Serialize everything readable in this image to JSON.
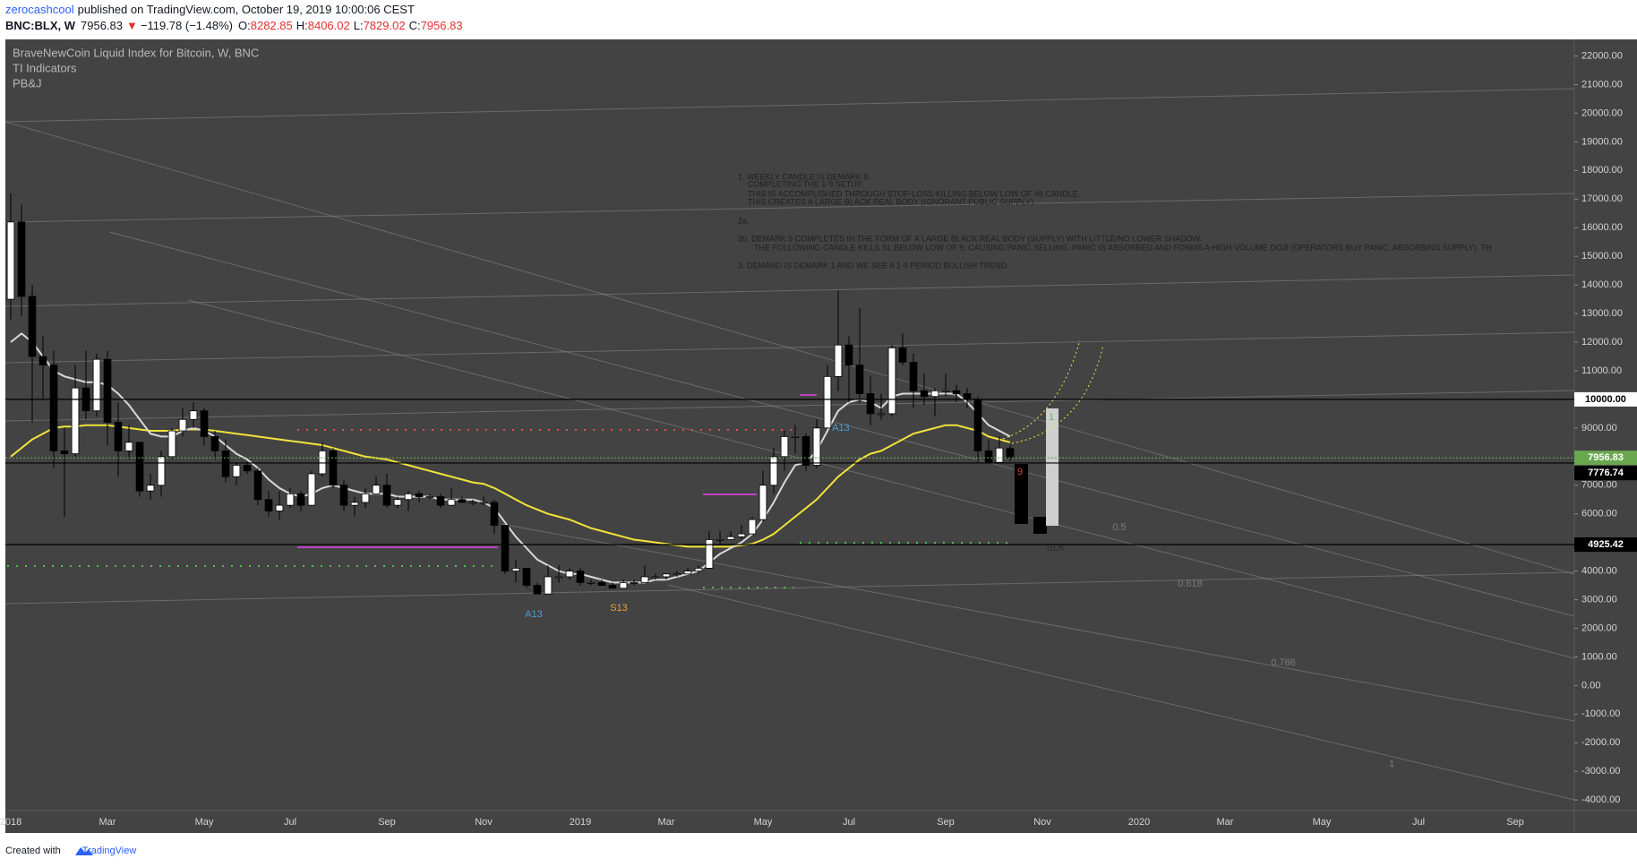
{
  "header": {
    "author": "zerocashcool",
    "published": "published on TradingView.com, October 19, 2019 10:00:06 CEST",
    "symbol": "BNC:BLX, W",
    "last": "7956.83",
    "arrow": "▼",
    "change": "−119.78 (−1.48%)",
    "ohlc": [
      {
        "label": "O:",
        "value": "8282.85"
      },
      {
        "label": "H:",
        "value": "8406.02"
      },
      {
        "label": "L:",
        "value": "7829.02"
      },
      {
        "label": "C:",
        "value": "7956.83"
      }
    ]
  },
  "footer": {
    "text": "Created with",
    "brand": "TradingView"
  },
  "chart_data": {
    "type": "candlestick",
    "title": "BraveNewCoin Liquid Index for Bitcoin, W, BNC",
    "indicators": [
      "TI Indicators",
      "PB&J"
    ],
    "up_color": "#ffffff",
    "down_color": "#000000",
    "categories": [
      "2018",
      null,
      null,
      null,
      null,
      null,
      null,
      null,
      null,
      "Mar",
      null,
      null,
      null,
      null,
      null,
      null,
      null,
      null,
      "May",
      null,
      null,
      null,
      null,
      null,
      null,
      null,
      "Jul",
      null,
      null,
      null,
      null,
      null,
      null,
      null,
      null,
      "Sep",
      null,
      null,
      null,
      null,
      null,
      null,
      null,
      null,
      "Nov",
      null,
      null,
      null,
      null,
      null,
      null,
      null,
      null,
      "2019",
      null,
      null,
      null,
      null,
      null,
      null,
      null,
      "Mar",
      null,
      null,
      null,
      null,
      null,
      null,
      null,
      null,
      "May",
      null,
      null,
      null,
      null,
      null,
      null,
      null,
      "Jul",
      null,
      null,
      null,
      null,
      null,
      null,
      null,
      null,
      "Sep",
      null,
      null,
      null,
      null,
      null,
      null,
      null,
      null,
      "Nov",
      null,
      null,
      null,
      null,
      null,
      null,
      null,
      null,
      "2020",
      null,
      null,
      null,
      null,
      null,
      null,
      null,
      "Mar",
      null,
      null,
      null,
      null,
      null,
      null,
      null,
      null,
      "May",
      null,
      null,
      null,
      null,
      null,
      null,
      null,
      null,
      "Jul",
      null,
      null,
      null,
      null,
      null,
      null,
      null,
      null,
      "Sep",
      null,
      null,
      null,
      null,
      null
    ],
    "open": [
      13500,
      16200,
      13600,
      11500,
      11200,
      8200,
      8100,
      10400,
      9600,
      11400,
      9200,
      8200,
      8500,
      6800,
      7000,
      8000,
      8900,
      9300,
      9600,
      8700,
      8200,
      7300,
      7700,
      7500,
      6500,
      6100,
      6300,
      6700,
      6300,
      7400,
      8200,
      7000,
      6300,
      6400,
      6700,
      7000,
      6300,
      6500,
      6700,
      6600,
      6600,
      6300,
      6500,
      6400,
      6400,
      6400,
      5600,
      4000,
      4100,
      3500,
      3200,
      3800,
      3800,
      4000,
      3600,
      3600,
      3500,
      3400,
      3600,
      3600,
      3800,
      3800,
      3900,
      3900,
      4000,
      4100,
      5100,
      5100,
      5200,
      5300,
      5800,
      7000,
      8000,
      8700,
      8700,
      7700,
      9000,
      10800,
      11900,
      11200,
      10200,
      9500,
      9500,
      11800,
      11300,
      10300,
      10100,
      10300,
      10300,
      10200,
      10000,
      8200,
      7800,
      8282.85,
      null,
      null,
      null,
      null,
      null,
      null,
      null,
      null,
      null,
      null,
      null,
      null,
      null,
      null,
      null,
      null,
      null,
      null,
      null,
      null,
      null,
      null,
      null,
      null,
      null,
      null,
      null,
      null,
      null,
      null,
      null,
      null,
      null,
      null,
      null,
      null,
      null,
      null,
      null,
      null,
      null,
      null,
      null,
      null,
      null,
      null,
      null,
      null,
      null,
      null,
      null,
      null
    ],
    "high": [
      17200,
      16800,
      14000,
      12200,
      11700,
      9000,
      11200,
      11700,
      11600,
      11700,
      9900,
      9100,
      8500,
      7400,
      8200,
      9000,
      9700,
      9900,
      9700,
      8900,
      8600,
      7800,
      7800,
      7600,
      6800,
      6800,
      6900,
      6800,
      7500,
      8500,
      8300,
      7200,
      6600,
      6900,
      7300,
      7400,
      6600,
      6800,
      6800,
      6700,
      6700,
      6900,
      6600,
      6500,
      6600,
      6500,
      5600,
      4400,
      4100,
      3600,
      4200,
      4200,
      4100,
      4100,
      3700,
      3700,
      3600,
      3700,
      3700,
      4200,
      3900,
      3900,
      4000,
      4100,
      4200,
      5400,
      5400,
      5400,
      5600,
      5900,
      7500,
      8300,
      8900,
      9100,
      8800,
      9300,
      11200,
      13800,
      12200,
      13200,
      10800,
      10200,
      11900,
      12300,
      11600,
      10900,
      10400,
      10900,
      10500,
      10400,
      10100,
      8600,
      8700,
      8406.02,
      null,
      null,
      null,
      null,
      null,
      null,
      null,
      null,
      null,
      null,
      null,
      null,
      null,
      null,
      null,
      null,
      null,
      null,
      null,
      null,
      null,
      null,
      null,
      null,
      null,
      null,
      null,
      null,
      null,
      null,
      null,
      null,
      null,
      null,
      null,
      null,
      null,
      null,
      null,
      null,
      null,
      null,
      null,
      null,
      null,
      null,
      null,
      null,
      null,
      null,
      null,
      null
    ],
    "low": [
      12800,
      12900,
      9200,
      10000,
      7600,
      5900,
      8000,
      9300,
      9400,
      8400,
      7300,
      7900,
      6600,
      6500,
      6600,
      7900,
      8700,
      9000,
      8400,
      7900,
      7100,
      7000,
      7400,
      6300,
      5900,
      5800,
      6200,
      6100,
      6300,
      7300,
      6900,
      6100,
      5900,
      6200,
      6700,
      6200,
      6200,
      6100,
      6400,
      6500,
      6200,
      6300,
      6400,
      6300,
      6300,
      5300,
      3900,
      3600,
      3400,
      3200,
      3200,
      3600,
      3700,
      3500,
      3500,
      3500,
      3400,
      3400,
      3500,
      3600,
      3700,
      3700,
      3800,
      3900,
      3900,
      4100,
      4900,
      5100,
      5100,
      5300,
      5700,
      6700,
      7500,
      8100,
      7500,
      7600,
      9000,
      10300,
      9900,
      9900,
      9100,
      9300,
      9400,
      11200,
      9700,
      9800,
      9400,
      10100,
      9900,
      9700,
      7800,
      7800,
      7800,
      7829.02,
      null,
      null,
      null,
      null,
      null,
      null,
      null,
      null,
      null,
      null,
      null,
      null,
      null,
      null,
      null,
      null,
      null,
      null,
      null,
      null,
      null,
      null,
      null,
      null,
      null,
      null,
      null,
      null,
      null,
      null,
      null,
      null,
      null,
      null,
      null,
      null,
      null,
      null,
      null,
      null,
      null,
      null,
      null,
      null,
      null,
      null,
      null,
      null,
      null,
      null,
      null,
      null
    ],
    "close": [
      16200,
      13600,
      11500,
      11200,
      8200,
      8100,
      10400,
      9600,
      11400,
      9200,
      8200,
      8500,
      6800,
      7000,
      8000,
      8900,
      9300,
      9600,
      8700,
      8200,
      7300,
      7700,
      7500,
      6500,
      6100,
      6300,
      6700,
      6300,
      7400,
      8200,
      7000,
      6300,
      6400,
      6700,
      7000,
      6300,
      6500,
      6700,
      6600,
      6600,
      6300,
      6500,
      6400,
      6400,
      6400,
      5600,
      4000,
      4100,
      3500,
      3200,
      3800,
      3800,
      4000,
      3600,
      3600,
      3500,
      3400,
      3600,
      3600,
      3800,
      3800,
      3900,
      3900,
      4000,
      4100,
      5100,
      5100,
      5200,
      5300,
      5800,
      7000,
      8000,
      8700,
      8700,
      7700,
      9000,
      10800,
      11900,
      11200,
      10200,
      9500,
      9500,
      11800,
      11300,
      10300,
      10100,
      10300,
      10300,
      10200,
      10000,
      8200,
      7800,
      8300,
      7956.83,
      null,
      null,
      null,
      null,
      null,
      null,
      null,
      null,
      null,
      null,
      null,
      null,
      null,
      null,
      null,
      null,
      null,
      null,
      null,
      null,
      null,
      null,
      null,
      null,
      null,
      null,
      null,
      null,
      null,
      null,
      null,
      null,
      null,
      null,
      null,
      null,
      null,
      null,
      null,
      null,
      null,
      null,
      null,
      null,
      null,
      null,
      null,
      null,
      null,
      null,
      null,
      null
    ],
    "lines": [
      {
        "color": "#f2e33a",
        "values": [
          8000,
          8300,
          8600,
          8800,
          9000,
          9050,
          9050,
          9100,
          9100,
          9100,
          9050,
          9000,
          8950,
          8900,
          8900,
          8900,
          8950,
          8950,
          8950,
          8900,
          8850,
          8800,
          8750,
          8700,
          8650,
          8600,
          8550,
          8500,
          8450,
          8400,
          8300,
          8200,
          8100,
          8000,
          7950,
          7900,
          7800,
          7700,
          7600,
          7500,
          7400,
          7300,
          7200,
          7100,
          7050,
          6900,
          6700,
          6500,
          6300,
          6150,
          6000,
          5900,
          5800,
          5650,
          5500,
          5400,
          5300,
          5200,
          5100,
          5050,
          5000,
          4950,
          4900,
          4850,
          4850,
          4850,
          4850,
          4850,
          4900,
          4950,
          5100,
          5300,
          5600,
          5900,
          6200,
          6500,
          6900,
          7300,
          7600,
          7900,
          8100,
          8200,
          8400,
          8600,
          8800,
          8900,
          9000,
          9100,
          9100,
          9000,
          8900,
          8700,
          8600,
          8500,
          null,
          null,
          null,
          null,
          null,
          null,
          null,
          null,
          null,
          null,
          null,
          null,
          null,
          null,
          null,
          null,
          null,
          null,
          null,
          null,
          null,
          null,
          null,
          null,
          null,
          null,
          null,
          null,
          null,
          null,
          null,
          null,
          null,
          null,
          null,
          null,
          null,
          null,
          null,
          null,
          null,
          null,
          null,
          null,
          null,
          null,
          null,
          null,
          null,
          null,
          null,
          null
        ]
      },
      {
        "color": "#d9d9d9",
        "values": [
          12000,
          12300,
          12000,
          11500,
          11000,
          10800,
          10700,
          10600,
          10600,
          10500,
          10200,
          9800,
          9300,
          8800,
          8700,
          8700,
          8900,
          9000,
          8900,
          8700,
          8400,
          8100,
          7900,
          7600,
          7200,
          6900,
          6700,
          6600,
          6700,
          6900,
          7000,
          6900,
          6800,
          6700,
          6700,
          6700,
          6600,
          6600,
          6600,
          6600,
          6500,
          6500,
          6500,
          6500,
          6400,
          6200,
          5700,
          5200,
          4800,
          4400,
          4200,
          4000,
          3900,
          3900,
          3800,
          3700,
          3600,
          3600,
          3600,
          3600,
          3700,
          3700,
          3800,
          3900,
          4000,
          4300,
          4600,
          4800,
          5000,
          5300,
          5800,
          6400,
          7100,
          7700,
          7800,
          8200,
          8900,
          9600,
          9900,
          10000,
          9900,
          9700,
          10100,
          10200,
          10200,
          10200,
          10200,
          10200,
          10200,
          9900,
          9500,
          9100,
          8900,
          8700,
          null,
          null,
          null,
          null,
          null,
          null,
          null,
          null,
          null,
          null,
          null,
          null,
          null,
          null,
          null,
          null,
          null,
          null,
          null,
          null,
          null,
          null,
          null,
          null,
          null,
          null,
          null,
          null,
          null,
          null,
          null,
          null,
          null,
          null,
          null,
          null,
          null,
          null,
          null,
          null,
          null,
          null,
          null,
          null,
          null,
          null,
          null,
          null,
          null,
          null,
          null,
          null
        ]
      }
    ],
    "ylim": [
      -4370,
      22580
    ],
    "yticks": [
      {
        "value": 22000,
        "label": "22000.00"
      },
      {
        "value": 21000,
        "label": "21000.00"
      },
      {
        "value": 20000,
        "label": "20000.00"
      },
      {
        "value": 19000,
        "label": "19000.00"
      },
      {
        "value": 18000,
        "label": "18000.00"
      },
      {
        "value": 17000,
        "label": "17000.00"
      },
      {
        "value": 16000,
        "label": "16000.00"
      },
      {
        "value": 15000,
        "label": "15000.00"
      },
      {
        "value": 14000,
        "label": "14000.00"
      },
      {
        "value": 13000,
        "label": "13000.00"
      },
      {
        "value": 12000,
        "label": "12000.00"
      },
      {
        "value": 11000,
        "label": "11000.00"
      },
      {
        "value": 9000,
        "label": "9000.00"
      },
      {
        "value": 7000,
        "label": "7000.00"
      },
      {
        "value": 6000,
        "label": "6000.00"
      },
      {
        "value": 4000,
        "label": "4000.00"
      },
      {
        "value": 3000,
        "label": "3000.00"
      },
      {
        "value": 2000,
        "label": "2000.00"
      },
      {
        "value": 1000,
        "label": "1000.00"
      },
      {
        "value": 0,
        "label": "0.00"
      },
      {
        "value": -1000,
        "label": "-1000.00"
      },
      {
        "value": -2000,
        "label": "-2000.00"
      },
      {
        "value": -3000,
        "label": "-3000.00"
      },
      {
        "value": -4000,
        "label": "-4000.00"
      }
    ],
    "price_lines": [
      {
        "value": 10000,
        "label": "10000.00",
        "color": "#000000",
        "box": "#ffffff",
        "text_color": "#000000"
      },
      {
        "value": 7956.83,
        "label": "7956.83",
        "color": "#6aa84f",
        "box": "#6aa84f",
        "text_color": "#ffffff",
        "dashed": true
      },
      {
        "value": 7776.74,
        "label": "7776.74",
        "color": "#000000",
        "box": "#000000",
        "text_color": "#ffffff"
      },
      {
        "value": 4925.42,
        "label": "4925.42",
        "color": "#000000",
        "box": "#000000",
        "text_color": "#ffffff"
      }
    ],
    "annotations": [
      {
        "text": "A13",
        "color": "#4a9fd8"
      },
      {
        "text": "S13",
        "color": "#f0a030"
      },
      {
        "text": "A13",
        "color": "#4a9fd8"
      },
      {
        "text": "SLK",
        "color": "#2a2a2a"
      },
      {
        "text": "0.5",
        "color": "#7a7a7a"
      },
      {
        "text": "0.618",
        "color": "#7a7a7a"
      },
      {
        "text": "0.786",
        "color": "#7a7a7a"
      },
      {
        "text": "1",
        "color": "#7a7a7a"
      },
      {
        "text": "1",
        "color": "#5cb85c"
      },
      {
        "text": "9",
        "color": "#e04040"
      }
    ],
    "notes": [
      "1. WEEKLY CANDLE IS DEMARK 9.",
      "COMPLETING THE 1-9 SETUP.",
      "THIS IS ACCOMPLISHED THROUGH STOP-LOSS KILLING BELOW LOW OF #8 CANDLE.",
      "THIS CREATES A LARGE BLACK REAL BODY (IGNORANT PUBLIC SUPPLY).",
      "2a.",
      "2b. DEMARK 9 COMPLETES IN THE FORM OF A LARGE BLACK REAL BODY (SUPPLY) WITH LITTLE/NO LOWER SHADOW.",
      "THE FOLLOWING CANDLE KILLS SL BELOW LOW OF 9, CAUSING PANIC SELLING. PANIC IS ABSORBED AND FORMS A HIGH VOLUME DOJI (OPERATORS BUY PANIC, ABSORBING SUPPLY). TH",
      "3. DEMAND IS DEMARK 1 AND WE SEE A 1-9 PERIOD BULLISH TREND."
    ]
  }
}
